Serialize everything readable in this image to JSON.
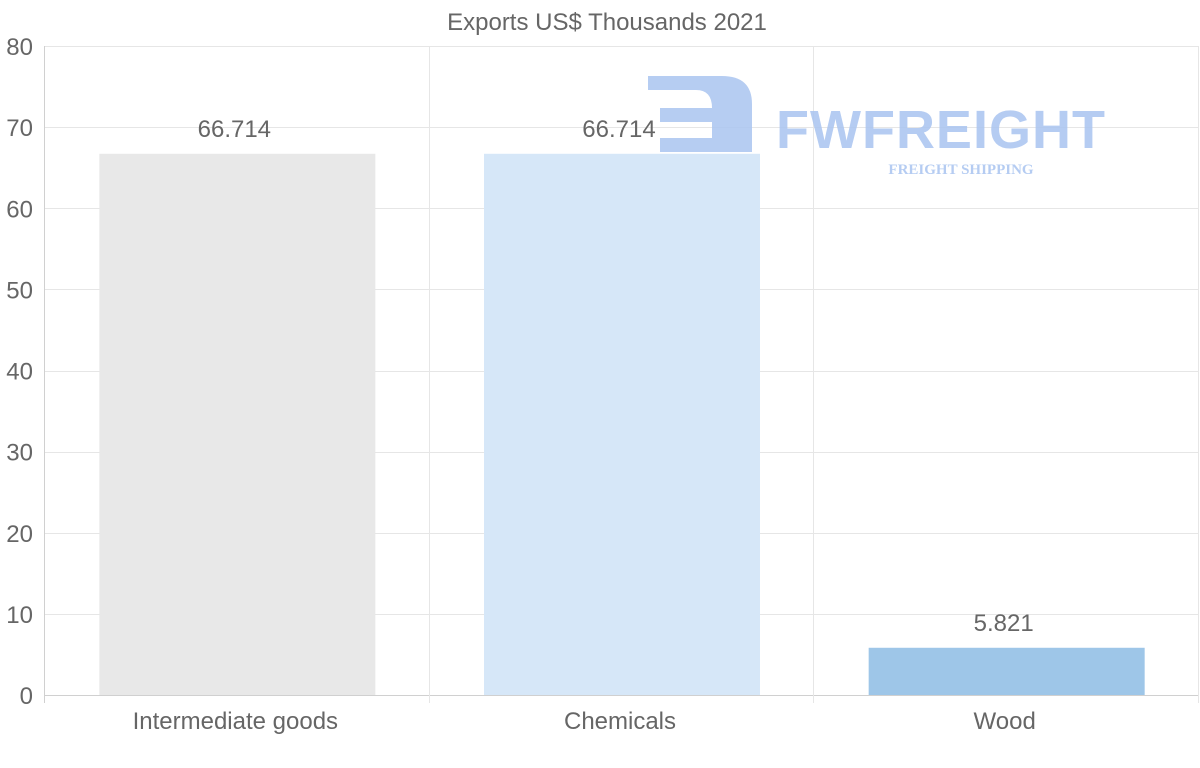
{
  "chart_data": {
    "type": "bar",
    "title": "Exports US$ Thousands 2021",
    "xlabel": "",
    "ylabel": "",
    "categories": [
      "Intermediate goods",
      "Chemicals",
      "Wood"
    ],
    "values": [
      66.714,
      66.714,
      5.821
    ],
    "value_labels": [
      "66.714",
      "66.714",
      "5.821"
    ],
    "bar_colors": [
      "#e8e8e8",
      "#d6e7f8",
      "#9ec6e8"
    ],
    "ylim": [
      0,
      80
    ],
    "yticks": [
      0,
      10,
      20,
      30,
      40,
      50,
      60,
      70,
      80
    ],
    "grid": true,
    "legend": "none"
  },
  "watermark": {
    "brand": "FWFREIGHT",
    "tagline": "FREIGHT SHIPPING",
    "color": "#a9c4f0"
  }
}
